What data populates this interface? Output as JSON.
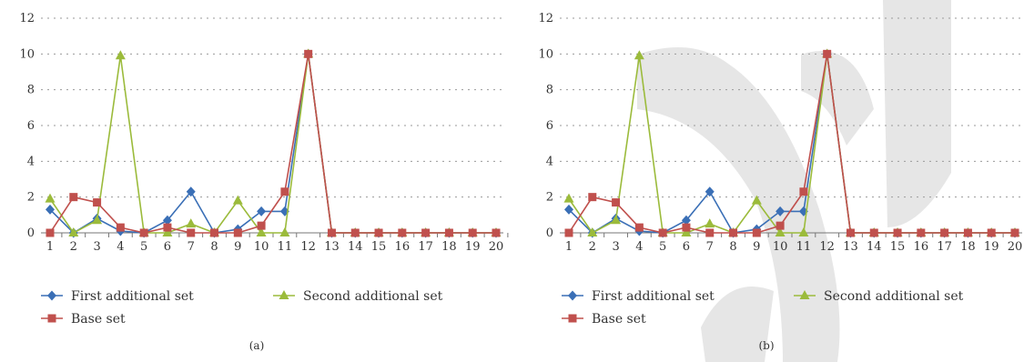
{
  "chart_data": [
    {
      "type": "line",
      "caption": "(a)",
      "x": [
        1,
        2,
        3,
        4,
        5,
        6,
        7,
        8,
        9,
        10,
        11,
        12,
        13,
        14,
        15,
        16,
        17,
        18,
        19,
        20
      ],
      "ylim": [
        0,
        12
      ],
      "yticks": [
        0,
        2,
        4,
        6,
        8,
        10,
        12
      ],
      "grid": true,
      "legend_position": "bottom",
      "series": [
        {
          "name": "First additional set",
          "color": "#3a6fb6",
          "marker": "diamond",
          "values": [
            1.3,
            0,
            0.8,
            0.1,
            0,
            0.7,
            2.3,
            0,
            0.2,
            1.2,
            1.2,
            10,
            0,
            0,
            0,
            0,
            0,
            0,
            0,
            0
          ]
        },
        {
          "name": "Second additional set",
          "color": "#9bbb3b",
          "marker": "triangle",
          "values": [
            1.9,
            0,
            0.7,
            9.9,
            0,
            0,
            0.5,
            0,
            1.8,
            0,
            0,
            10,
            0,
            0,
            0,
            0,
            0,
            0,
            0,
            0
          ]
        },
        {
          "name": "Base set",
          "color": "#c0504d",
          "marker": "square",
          "values": [
            0,
            2,
            1.7,
            0.3,
            0,
            0.3,
            0,
            0,
            0,
            0.4,
            2.3,
            10,
            0,
            0,
            0,
            0,
            0,
            0,
            0,
            0
          ]
        }
      ]
    },
    {
      "type": "line",
      "caption": "(b)",
      "x": [
        1,
        2,
        3,
        4,
        5,
        6,
        7,
        8,
        9,
        10,
        11,
        12,
        13,
        14,
        15,
        16,
        17,
        18,
        19,
        20
      ],
      "ylim": [
        0,
        12
      ],
      "yticks": [
        0,
        2,
        4,
        6,
        8,
        10,
        12
      ],
      "grid": true,
      "legend_position": "bottom",
      "series": [
        {
          "name": "First additional set",
          "color": "#3a6fb6",
          "marker": "diamond",
          "values": [
            1.3,
            0,
            0.8,
            0.1,
            0,
            0.7,
            2.3,
            0,
            0.2,
            1.2,
            1.2,
            10,
            0,
            0,
            0,
            0,
            0,
            0,
            0,
            0
          ]
        },
        {
          "name": "Second additional set",
          "color": "#9bbb3b",
          "marker": "triangle",
          "values": [
            1.9,
            0,
            0.7,
            9.9,
            0,
            0,
            0.5,
            0,
            1.8,
            0,
            0,
            10,
            0,
            0,
            0,
            0,
            0,
            0,
            0,
            0
          ]
        },
        {
          "name": "Base set",
          "color": "#c0504d",
          "marker": "square",
          "values": [
            0,
            2,
            1.7,
            0.3,
            0,
            0.3,
            0,
            0,
            0,
            0.4,
            2.3,
            10,
            0,
            0,
            0,
            0,
            0,
            0,
            0,
            0
          ]
        }
      ]
    }
  ]
}
